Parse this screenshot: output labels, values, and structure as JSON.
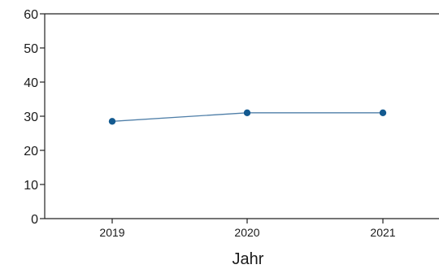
{
  "chart_data": {
    "type": "line",
    "title": "",
    "xlabel": "Jahr",
    "ylabel": "",
    "categories": [
      "2019",
      "2020",
      "2021"
    ],
    "series": [
      {
        "values": [
          28.5,
          31,
          31
        ]
      }
    ],
    "ylim": [
      0,
      60
    ],
    "yticks": [
      "0",
      "10",
      "20",
      "30",
      "40",
      "50",
      "60"
    ],
    "grid": false,
    "legend": "none",
    "colors": {
      "line": "#4f7fa8",
      "marker": "#135a90",
      "axis": "#222222"
    }
  }
}
